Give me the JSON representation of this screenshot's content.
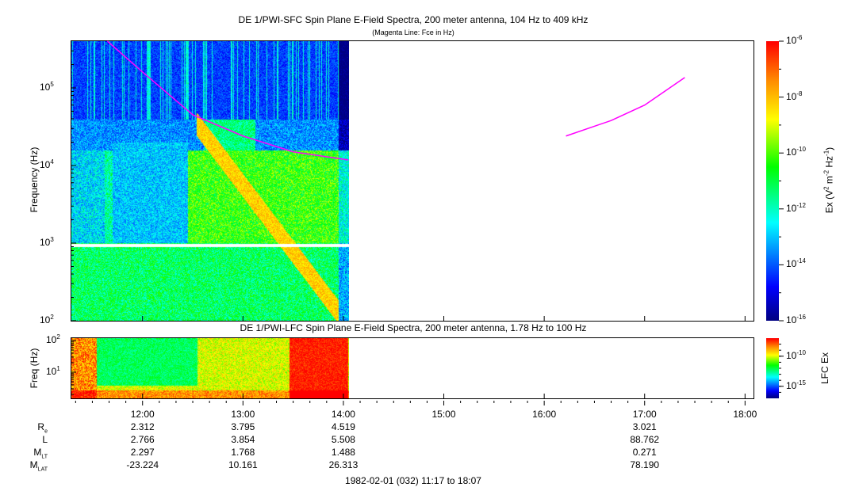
{
  "chart_data": [
    {
      "type": "heatmap",
      "title": "DE 1/PWI-SFC  Spin Plane E-Field Spectra, 200 meter antenna, 104 Hz to 409 kHz",
      "subtitle": "(Magenta Line: Fce in Hz)",
      "ylabel": "Frequency (Hz)",
      "yscale": "log",
      "ylim": [
        100,
        409000
      ],
      "yticks": [
        {
          "b": "10",
          "e": "2",
          "v": 100
        },
        {
          "b": "10",
          "e": "3",
          "v": 1000
        },
        {
          "b": "10",
          "e": "4",
          "v": 10000
        },
        {
          "b": "10",
          "e": "5",
          "v": 100000
        }
      ],
      "xlim": [
        "11:17",
        "18:07"
      ],
      "data_end": "14:04",
      "data_gap_hz": [
        900,
        1000
      ],
      "colorbar": {
        "label": "Ex (V",
        "label_sup1": "2",
        "label_mid": " m",
        "label_sup2": "-2",
        "label_hz": " Hz",
        "label_sup3": "-1",
        "label_end": ")",
        "scale": "log",
        "range": [
          1e-16,
          1e-06
        ],
        "ticks": [
          {
            "b": "10",
            "e": "-6",
            "v": -6
          },
          {
            "b": "10",
            "e": "-8",
            "v": -8
          },
          {
            "b": "10",
            "e": "-10",
            "v": -10
          },
          {
            "b": "10",
            "e": "-12",
            "v": -12
          },
          {
            "b": "10",
            "e": "-14",
            "v": -14
          },
          {
            "b": "10",
            "e": "-16",
            "v": -16
          }
        ],
        "colormap": "rainbow (dark blue → blue → cyan → green → yellow → orange → red)"
      },
      "fce_line": {
        "color": "#ff00ff",
        "segments": [
          [
            {
              "t": "11:39",
              "hz": 409000
            },
            {
              "t": "12:00",
              "hz": 160000
            },
            {
              "t": "12:30",
              "hz": 45000
            },
            {
              "t": "13:00",
              "hz": 24000
            },
            {
              "t": "13:30",
              "hz": 15000
            },
            {
              "t": "14:03",
              "hz": 11800
            }
          ],
          [
            {
              "t": "16:13",
              "hz": 24000
            },
            {
              "t": "16:40",
              "hz": 38000
            },
            {
              "t": "17:00",
              "hz": 60000
            },
            {
              "t": "17:24",
              "hz": 136000
            }
          ]
        ]
      }
    },
    {
      "type": "heatmap",
      "title": "DE 1/PWI-LFC  Spin Plane E-Field Spectra, 200 meter antenna, 1.78 Hz to 100 Hz",
      "ylabel": "Freq (Hz)",
      "yscale": "log",
      "ylim": [
        1.78,
        100
      ],
      "yticks": [
        {
          "b": "10",
          "e": "1",
          "v": 10
        },
        {
          "b": "10",
          "e": "2",
          "v": 100
        }
      ],
      "xlim": [
        "11:17",
        "18:07"
      ],
      "data_end": "14:04",
      "colorbar": {
        "label": "LFC Ex",
        "scale": "log",
        "range": [
          1e-17,
          1e-07
        ],
        "ticks": [
          {
            "b": "10",
            "e": "-10",
            "v": -10
          },
          {
            "b": "10",
            "e": "-15",
            "v": -15
          }
        ]
      }
    }
  ],
  "xaxis": {
    "ticks": [
      "12:00",
      "13:00",
      "14:00",
      "15:00",
      "16:00",
      "17:00",
      "18:00"
    ],
    "footer": "1982-02-01 (032) 11:17 to 18:07"
  },
  "ephemeris": {
    "rows": [
      {
        "label": "R",
        "sub": "e"
      },
      {
        "label": "L",
        "sub": ""
      },
      {
        "label": "M",
        "sub": "LT"
      },
      {
        "label": "M",
        "sub": "LAT"
      }
    ],
    "columns": [
      {
        "time": "12:00",
        "values": [
          "2.312",
          "2.766",
          "2.297",
          "-23.224"
        ]
      },
      {
        "time": "13:00",
        "values": [
          "3.795",
          "3.854",
          "1.768",
          "10.161"
        ]
      },
      {
        "time": "14:00",
        "values": [
          "4.519",
          "5.508",
          "1.488",
          "26.313"
        ]
      },
      {
        "time": "17:00",
        "values": [
          "3.021",
          "88.762",
          "0.271",
          "78.190"
        ]
      }
    ]
  }
}
